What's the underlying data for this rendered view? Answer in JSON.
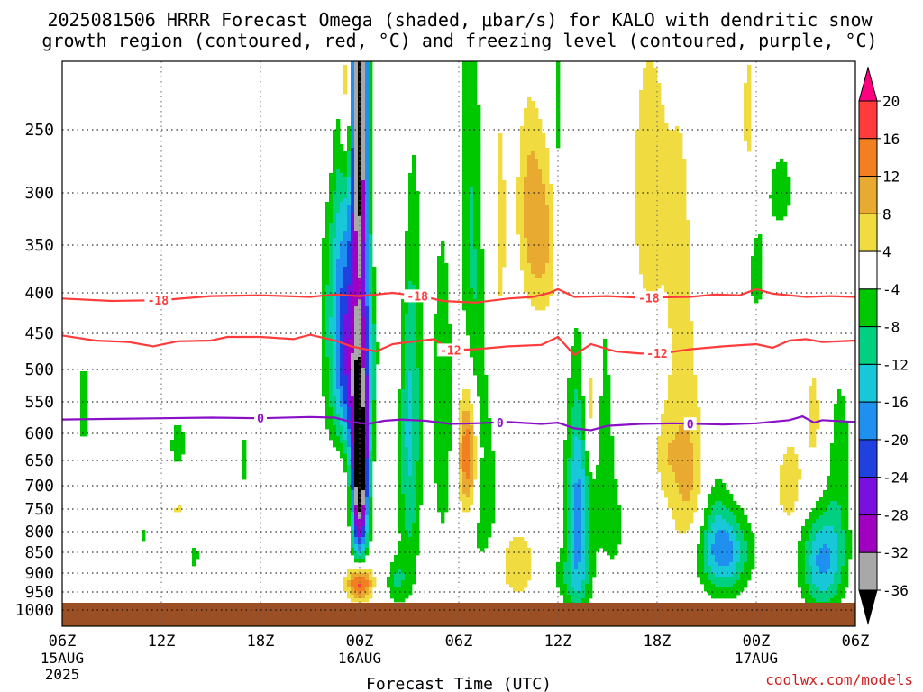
{
  "chart_data": {
    "type": "heatmap",
    "title": "2025081506 HRRR Forecast Omega (shaded, μbar/s) for KALO with dendritic snow growth region (contoured, red, °C) and freezing level (contoured, purple, °C)",
    "title_lines": [
      "2025081506 HRRR Forecast Omega (shaded, μbar/s) for KALO with dendritic snow",
      "growth region (contoured, red, °C) and freezing level (contoured, purple, °C)"
    ],
    "xlabel": "Forecast Time (UTC)",
    "ylabel": "",
    "watermark": "coolwx.com/models",
    "x_range_hours": [
      0,
      48
    ],
    "y_range_hpa": [
      200,
      1025
    ],
    "y_ticks": [
      250,
      300,
      350,
      400,
      450,
      500,
      550,
      600,
      650,
      700,
      750,
      800,
      850,
      900,
      950,
      1000
    ],
    "x_ticks": [
      {
        "h": 0,
        "label": "06Z",
        "sub": [
          "15AUG",
          "2025"
        ]
      },
      {
        "h": 6,
        "label": "12Z",
        "sub": []
      },
      {
        "h": 12,
        "label": "18Z",
        "sub": []
      },
      {
        "h": 18,
        "label": "00Z",
        "sub": [
          "16AUG"
        ]
      },
      {
        "h": 24,
        "label": "06Z",
        "sub": []
      },
      {
        "h": 30,
        "label": "12Z",
        "sub": []
      },
      {
        "h": 36,
        "label": "18Z",
        "sub": []
      },
      {
        "h": 42,
        "label": "00Z",
        "sub": [
          "17AUG"
        ]
      },
      {
        "h": 48,
        "label": "06Z",
        "sub": []
      }
    ],
    "colorbar": {
      "labels": [
        "20",
        "16",
        "12",
        "8",
        "4",
        "-4",
        "-8",
        "-12",
        "-16",
        "-20",
        "-24",
        "-28",
        "-32",
        "-36"
      ],
      "colors": [
        "#ff0080",
        "#ff3b3b",
        "#f08020",
        "#e8aa30",
        "#f0dc40",
        "#ffffff",
        "#00c800",
        "#00d080",
        "#18c8d8",
        "#2090f0",
        "#2040e0",
        "#7a10e0",
        "#a000c0",
        "#a8a8a8",
        "#000000"
      ]
    },
    "omega_colors": {
      "pos4": "#f0dc40",
      "pos8": "#e8aa30",
      "pos12": "#f08020",
      "pos16": "#ff3b3b",
      "pos20": "#ff0080",
      "neg4": "#00c800",
      "neg8": "#00d080",
      "neg12": "#18c8d8",
      "neg16": "#2090f0",
      "neg20": "#2040e0",
      "neg24": "#7a10e0",
      "neg28": "#a000c0",
      "neg32": "#a8a8a8",
      "neg36": "#000000"
    },
    "ground_color": "#9b4f24",
    "ground_top_hpa": 980,
    "omega_features": [
      {
        "h": 18.0,
        "p": 215,
        "sh": 0.35,
        "sp": 110,
        "v": -40
      },
      {
        "h": 18.0,
        "p": 690,
        "sh": 0.35,
        "sp": 120,
        "v": -40
      },
      {
        "h": 17.7,
        "p": 480,
        "sh": 0.9,
        "sp": 120,
        "v": -26
      },
      {
        "h": 16.6,
        "p": 300,
        "sh": 0.6,
        "sp": 200,
        "v": -8
      },
      {
        "h": 16.8,
        "p": 700,
        "sh": 0.55,
        "sp": 80,
        "v": 6
      },
      {
        "h": 18.0,
        "p": 925,
        "sh": 0.5,
        "sp": 35,
        "v": 22
      },
      {
        "h": 17.2,
        "p": 220,
        "sh": 0.3,
        "sp": 45,
        "v": 13
      },
      {
        "h": 16.2,
        "p": 240,
        "sh": 0.4,
        "sp": 60,
        "v": 6
      },
      {
        "h": 20.5,
        "p": 280,
        "sh": 0.5,
        "sp": 180,
        "v": 6
      },
      {
        "h": 19.0,
        "p": 300,
        "sh": 0.4,
        "sp": 90,
        "v": 5
      },
      {
        "h": 19.5,
        "p": 560,
        "sh": 0.45,
        "sp": 120,
        "v": 6
      },
      {
        "h": 21.0,
        "p": 560,
        "sh": 0.5,
        "sp": 240,
        "v": -14
      },
      {
        "h": 20.2,
        "p": 920,
        "sh": 0.4,
        "sp": 40,
        "v": -8
      },
      {
        "h": 24.6,
        "p": 640,
        "sh": 0.45,
        "sp": 90,
        "v": 20
      },
      {
        "h": 23.0,
        "p": 560,
        "sh": 0.5,
        "sp": 200,
        "v": -7
      },
      {
        "h": 25.5,
        "p": 700,
        "sh": 0.9,
        "sp": 170,
        "v": -6
      },
      {
        "h": 25.0,
        "p": 450,
        "sh": 0.4,
        "sp": 200,
        "v": -6
      },
      {
        "h": 24.5,
        "p": 290,
        "sh": 0.4,
        "sp": 120,
        "v": -5
      },
      {
        "h": 26.5,
        "p": 350,
        "sh": 0.4,
        "sp": 150,
        "v": 5
      },
      {
        "h": 27.5,
        "p": 880,
        "sh": 0.8,
        "sp": 60,
        "v": 8
      },
      {
        "h": 28.2,
        "p": 290,
        "sh": 0.5,
        "sp": 60,
        "v": 5
      },
      {
        "h": 29.0,
        "p": 340,
        "sh": 0.8,
        "sp": 60,
        "v": 10
      },
      {
        "h": 30.0,
        "p": 260,
        "sh": 0.3,
        "sp": 80,
        "v": -6
      },
      {
        "h": 31.2,
        "p": 750,
        "sh": 0.5,
        "sp": 180,
        "v": -17
      },
      {
        "h": 32.0,
        "p": 560,
        "sh": 0.35,
        "sp": 80,
        "v": 12
      },
      {
        "h": 32.5,
        "p": 560,
        "sh": 0.6,
        "sp": 160,
        "v": -6
      },
      {
        "h": 33.5,
        "p": 800,
        "sh": 0.9,
        "sp": 140,
        "v": -4
      },
      {
        "h": 30.5,
        "p": 910,
        "sh": 0.9,
        "sp": 50,
        "v": -5
      },
      {
        "h": 35.5,
        "p": 300,
        "sh": 0.9,
        "sp": 110,
        "v": 6
      },
      {
        "h": 37.5,
        "p": 450,
        "sh": 0.7,
        "sp": 230,
        "v": 5
      },
      {
        "h": 36.5,
        "p": 640,
        "sh": 0.5,
        "sp": 60,
        "v": 5
      },
      {
        "h": 38.0,
        "p": 700,
        "sh": 0.8,
        "sp": 110,
        "v": 7
      },
      {
        "h": 40.0,
        "p": 850,
        "sh": 1.1,
        "sp": 70,
        "v": -18
      },
      {
        "h": 39.5,
        "p": 740,
        "sh": 0.6,
        "sp": 70,
        "v": -5
      },
      {
        "h": 41.5,
        "p": 240,
        "sh": 0.3,
        "sp": 60,
        "v": 5
      },
      {
        "h": 43.5,
        "p": 300,
        "sh": 0.8,
        "sp": 40,
        "v": -5
      },
      {
        "h": 42.0,
        "p": 380,
        "sh": 0.5,
        "sp": 50,
        "v": -5
      },
      {
        "h": 44.0,
        "p": 700,
        "sh": 0.5,
        "sp": 60,
        "v": 8
      },
      {
        "h": 46.0,
        "p": 870,
        "sh": 0.9,
        "sp": 90,
        "v": -17
      },
      {
        "h": 47.0,
        "p": 650,
        "sh": 0.6,
        "sp": 140,
        "v": -6
      },
      {
        "h": 45.5,
        "p": 580,
        "sh": 0.6,
        "sp": 110,
        "v": 5
      },
      {
        "h": 1.3,
        "p": 555,
        "sh": 0.35,
        "sp": 60,
        "v": -6
      },
      {
        "h": 7.0,
        "p": 620,
        "sh": 0.4,
        "sp": 40,
        "v": -6
      },
      {
        "h": 8.0,
        "p": 860,
        "sh": 0.3,
        "sp": 30,
        "v": -5
      },
      {
        "h": 7.0,
        "p": 750,
        "sh": 0.2,
        "sp": 15,
        "v": 5
      },
      {
        "h": 11.0,
        "p": 650,
        "sh": 0.15,
        "sp": 60,
        "v": -5
      },
      {
        "h": 4.9,
        "p": 810,
        "sh": 0.15,
        "sp": 20,
        "v": -5
      }
    ],
    "contours": [
      {
        "name": "dendritic -18",
        "kind": "dgz",
        "color": "#ff3b3b",
        "labels": [
          {
            "h": 5.8,
            "text": "-18"
          },
          {
            "h": 21.5,
            "text": "-18"
          },
          {
            "h": 35.5,
            "text": "-18"
          }
        ],
        "points": [
          [
            0,
            407
          ],
          [
            3,
            410
          ],
          [
            6,
            409
          ],
          [
            9,
            404
          ],
          [
            12,
            403
          ],
          [
            15,
            405
          ],
          [
            16.5,
            402
          ],
          [
            18,
            404
          ],
          [
            20,
            400
          ],
          [
            22,
            405
          ],
          [
            23,
            410
          ],
          [
            25,
            412
          ],
          [
            27,
            407
          ],
          [
            28.5,
            405
          ],
          [
            29.5,
            400
          ],
          [
            30,
            396
          ],
          [
            31,
            405
          ],
          [
            33,
            404
          ],
          [
            35,
            406
          ],
          [
            38,
            405
          ],
          [
            39.5,
            402
          ],
          [
            41,
            403
          ],
          [
            42,
            396
          ],
          [
            43,
            401
          ],
          [
            45,
            405
          ],
          [
            46.5,
            404
          ],
          [
            48,
            405
          ]
        ]
      },
      {
        "name": "dendritic -12",
        "kind": "dgz",
        "color": "#ff3b3b",
        "labels": [
          {
            "h": 23.5,
            "text": "-12"
          },
          {
            "h": 36.0,
            "text": "-12"
          }
        ],
        "points": [
          [
            0,
            453
          ],
          [
            2,
            460
          ],
          [
            4,
            462
          ],
          [
            5.5,
            468
          ],
          [
            7,
            461
          ],
          [
            9,
            460
          ],
          [
            10,
            455
          ],
          [
            12,
            455
          ],
          [
            14,
            458
          ],
          [
            15,
            452
          ],
          [
            16.5,
            460
          ],
          [
            17.5,
            468
          ],
          [
            19,
            475
          ],
          [
            20,
            465
          ],
          [
            21,
            462
          ],
          [
            22.5,
            458
          ],
          [
            23.5,
            473
          ],
          [
            25,
            472
          ],
          [
            27,
            468
          ],
          [
            29,
            466
          ],
          [
            30,
            455
          ],
          [
            31,
            480
          ],
          [
            32,
            465
          ],
          [
            33.5,
            475
          ],
          [
            35,
            478
          ],
          [
            36.5,
            477
          ],
          [
            38,
            472
          ],
          [
            40,
            468
          ],
          [
            42,
            465
          ],
          [
            43,
            470
          ],
          [
            44,
            460
          ],
          [
            45,
            458
          ],
          [
            46,
            462
          ],
          [
            48,
            460
          ]
        ]
      },
      {
        "name": "freezing level 0",
        "kind": "fzl",
        "color": "#8a10c8",
        "labels": [
          {
            "h": 12.0,
            "text": "0"
          },
          {
            "h": 26.5,
            "text": "0"
          },
          {
            "h": 38.0,
            "text": "0"
          }
        ],
        "points": [
          [
            0,
            578
          ],
          [
            3,
            577
          ],
          [
            6,
            576
          ],
          [
            9,
            575
          ],
          [
            12,
            576
          ],
          [
            15,
            574
          ],
          [
            16.5,
            575
          ],
          [
            17.5,
            582
          ],
          [
            18.5,
            585
          ],
          [
            19.5,
            580
          ],
          [
            20.5,
            578
          ],
          [
            22,
            580
          ],
          [
            23.5,
            585
          ],
          [
            25,
            584
          ],
          [
            27,
            582
          ],
          [
            29,
            585
          ],
          [
            30,
            583
          ],
          [
            31,
            592
          ],
          [
            32,
            595
          ],
          [
            33,
            588
          ],
          [
            35,
            585
          ],
          [
            37,
            584
          ],
          [
            40,
            586
          ],
          [
            42,
            584
          ],
          [
            44,
            579
          ],
          [
            44.8,
            573
          ],
          [
            45.5,
            583
          ],
          [
            46,
            579
          ],
          [
            48,
            582
          ]
        ]
      }
    ],
    "legend_placement": "right colorbar",
    "grid": true
  }
}
